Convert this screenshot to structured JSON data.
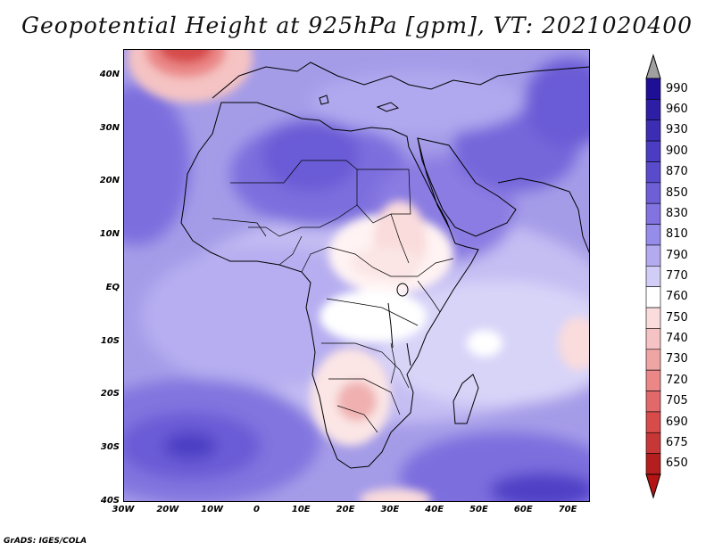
{
  "title": "Geopotential Height at 925hPa [gpm], VT: 2021020400",
  "credit": "GrADS: IGES/COLA",
  "map": {
    "variable": "Geopotential Height",
    "level": "925hPa",
    "units": "gpm",
    "lat_range": [
      -40,
      45
    ],
    "lon_range": [
      -30,
      75
    ],
    "lat_ticks": [
      "40N",
      "30N",
      "20N",
      "10N",
      "EQ",
      "10S",
      "20S",
      "30S",
      "40S"
    ],
    "lon_ticks": [
      "30W",
      "20W",
      "10W",
      "0",
      "10E",
      "20E",
      "30E",
      "40E",
      "50E",
      "60E",
      "70E"
    ],
    "features": {
      "high_low_region": "southern Sahara / Sahel",
      "low_center_1": "Namibia/Botswana",
      "high_center_1": "South Atlantic",
      "high_center_2": "South Indian Ocean"
    }
  },
  "colorbar": {
    "levels": [
      "990",
      "960",
      "930",
      "900",
      "870",
      "850",
      "830",
      "810",
      "790",
      "770",
      "760",
      "750",
      "740",
      "730",
      "720",
      "705",
      "690",
      "675",
      "650"
    ],
    "colors": [
      "#1e0f96",
      "#2d1ea5",
      "#3c2db4",
      "#4b3cc3",
      "#5a4bcd",
      "#6e5fd7",
      "#8273e1",
      "#968cea",
      "#b4aaf0",
      "#d2cdf7",
      "#ffffff",
      "#fadcdc",
      "#f5c3c3",
      "#f0a5a5",
      "#eb8787",
      "#e16969",
      "#d74b4b",
      "#c83737",
      "#b41e1e"
    ],
    "top_arrow_color": "#a0a0a0",
    "bottom_arrow_color": "#b41414"
  }
}
